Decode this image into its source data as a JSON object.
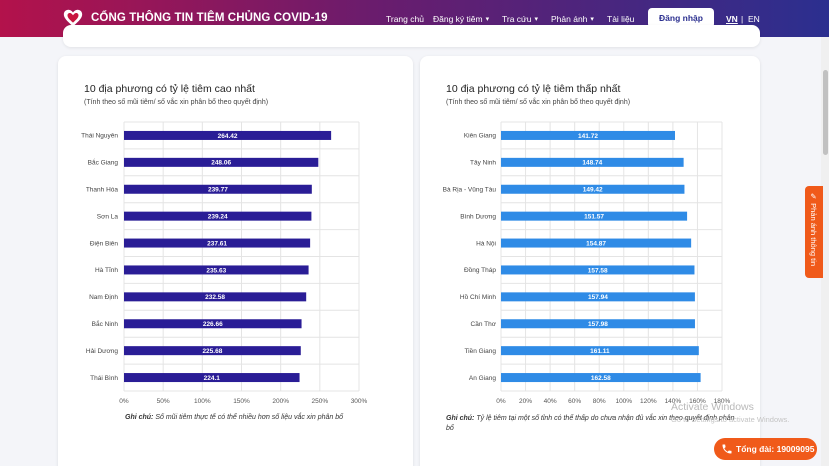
{
  "header": {
    "brand": "CỔNG THÔNG TIN TIÊM CHỦNG COVID-19",
    "nav": [
      {
        "label": "Trang chủ",
        "chevron": false
      },
      {
        "label": "Đăng ký tiêm",
        "chevron": true
      },
      {
        "label": "Tra cứu",
        "chevron": true
      },
      {
        "label": "Phản ánh",
        "chevron": true
      },
      {
        "label": "Tài liệu",
        "chevron": false
      }
    ],
    "login_label": "Đăng nhập",
    "lang_vn": "VN",
    "lang_sep": "|",
    "lang_en": "EN"
  },
  "colors": {
    "left_bar": "#2a1d96",
    "right_bar": "#2f8be6",
    "accent": "#f05a1a"
  },
  "chart_data": [
    {
      "type": "bar",
      "orientation": "horizontal",
      "title": "10 địa phương có tỷ lệ tiêm cao nhất",
      "subtitle": "(Tính theo số mũi tiêm/ số vắc xin phân bổ theo quyết định)",
      "categories": [
        "Thái Nguyên",
        "Bắc Giang",
        "Thanh Hóa",
        "Sơn La",
        "Điện Biên",
        "Hà Tĩnh",
        "Nam Định",
        "Bắc Ninh",
        "Hải Dương",
        "Thái Bình"
      ],
      "values": [
        264.42,
        248.06,
        239.77,
        239.24,
        237.61,
        235.63,
        232.58,
        226.66,
        225.68,
        224.1
      ],
      "value_labels": [
        "264.42",
        "248.06",
        "239.77",
        "239.24",
        "237.61",
        "235.63",
        "232.58",
        "226.66",
        "225.68",
        "224.1"
      ],
      "xlim": [
        0,
        300
      ],
      "xticks": [
        0,
        50,
        100,
        150,
        200,
        250,
        300
      ],
      "xtick_labels": [
        "0%",
        "50%",
        "100%",
        "150%",
        "200%",
        "250%",
        "300%"
      ],
      "grid": true,
      "note_label": "Ghi chú:",
      "note_text": "Số mũi tiêm thực tế có thể nhiều hơn số liệu vắc xin phân bổ"
    },
    {
      "type": "bar",
      "orientation": "horizontal",
      "title": "10 địa phương có tỷ lệ tiêm thấp nhất",
      "subtitle": "(Tính theo số mũi tiêm/ số vắc xin phân bổ theo quyết định)",
      "categories": [
        "Kiên Giang",
        "Tây Ninh",
        "Bà Rịa - Vũng Tàu",
        "Bình Dương",
        "Hà Nội",
        "Đồng Tháp",
        "Hồ Chí Minh",
        "Cần Thơ",
        "Tiền Giang",
        "An Giang"
      ],
      "values": [
        141.72,
        148.74,
        149.42,
        151.57,
        154.87,
        157.58,
        157.94,
        157.98,
        161.11,
        162.58
      ],
      "value_labels": [
        "141.72",
        "148.74",
        "149.42",
        "151.57",
        "154.87",
        "157.58",
        "157.94",
        "157.98",
        "161.11",
        "162.58"
      ],
      "xlim": [
        0,
        180
      ],
      "xticks": [
        0,
        20,
        40,
        60,
        80,
        100,
        120,
        140,
        160,
        180
      ],
      "xtick_labels": [
        "0%",
        "20%",
        "40%",
        "60%",
        "80%",
        "100%",
        "120%",
        "140%",
        "160%",
        "180%"
      ],
      "grid": true,
      "note_label": "Ghi chú:",
      "note_text": "Tỷ lệ tiêm tại một số tỉnh có thể thấp do chưa nhận đủ vắc xin theo quyết định phân bổ"
    }
  ],
  "feedback_label": "Phản ánh thông tin",
  "hotline_label": "Tổng đài: 19009095",
  "watermark": {
    "title": "Activate Windows",
    "subtitle": "Go to Settings to activate Windows."
  }
}
